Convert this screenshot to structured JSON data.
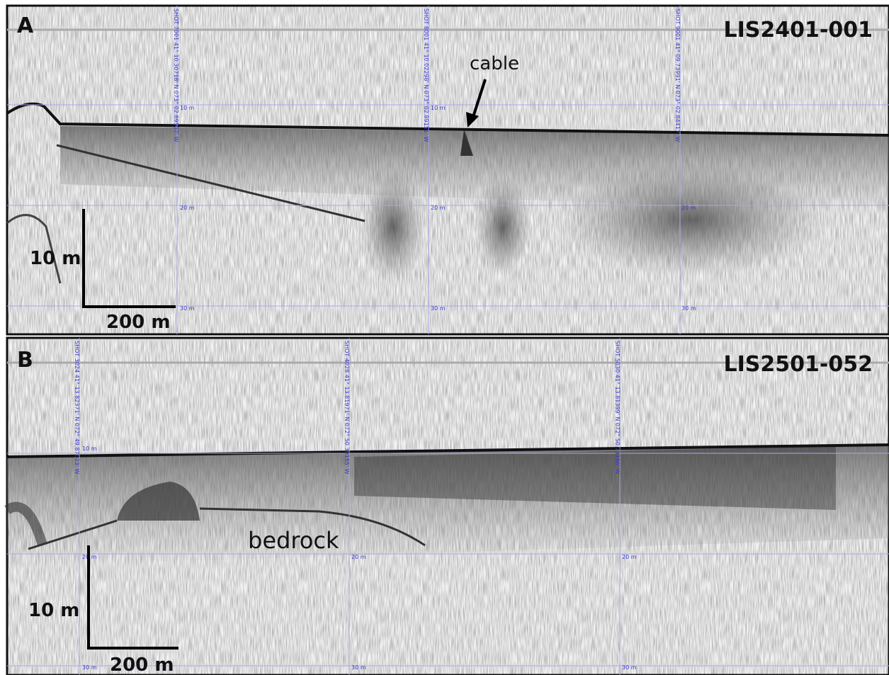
{
  "panels": [
    {
      "label": "A",
      "line_id": "LIS2401-001",
      "annotation": "cable",
      "scale_bar": {
        "vertical": "10 m",
        "horizontal": "200 m"
      },
      "depth_labels": [
        "10 m",
        "20 m",
        "30 m"
      ],
      "shot_labels": [
        "SHOT 7001 41° 10.30718' N 073° 02.89507' W",
        "SHOT 8001 41° 10.02298' N 073° 02.89151' W",
        "SHOT 9001 41° 09.73991' N 073° 02.84417' W"
      ]
    },
    {
      "label": "B",
      "line_id": "LIS2501-052",
      "annotation": "bedrock",
      "scale_bar": {
        "vertical": "10 m",
        "horizontal": "200 m"
      },
      "depth_labels": [
        "10 m",
        "20 m",
        "30 m"
      ],
      "shot_labels": [
        "SHOT 3024 41° 13.82371' N 072° 49.87023' W",
        "SHOT 4028 41° 13.81971' N 072° 50.30155' W",
        "SHOT 5030 41° 13.81399' N 072° 50.73180' W"
      ]
    }
  ]
}
